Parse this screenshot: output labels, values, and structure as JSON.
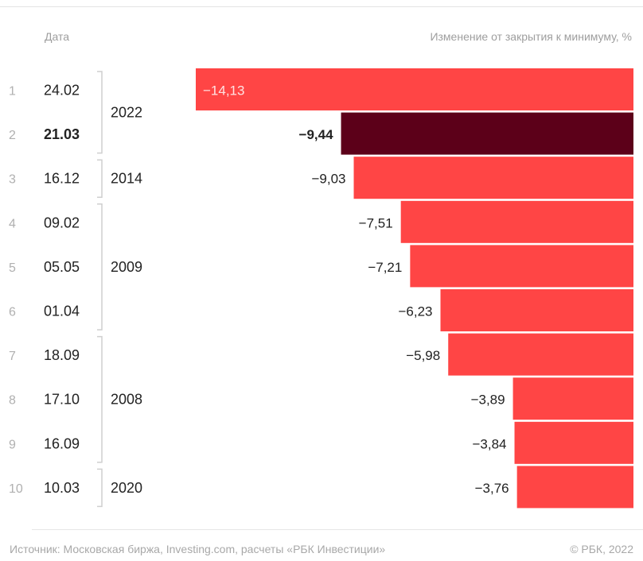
{
  "header": {
    "date_label": "Дата",
    "metric_label": "Изменение от закрытия к минимуму, %"
  },
  "footer": {
    "source": "Источник: Московская биржа, Investing.com, расчеты «РБК Инвестиции»",
    "copyright": "© РБК, 2022"
  },
  "colors": {
    "bar": "#ff4545",
    "highlight": "#5c0019",
    "rank": "#b0b0b0",
    "text": "#222222",
    "bracket": "#cfcfcf"
  },
  "chart_data": {
    "type": "bar",
    "orientation": "horizontal",
    "rows": [
      {
        "rank": "1",
        "date": "24.02",
        "value": -14.13,
        "label": "−14,13",
        "highlight": false
      },
      {
        "rank": "2",
        "date": "21.03",
        "value": -9.44,
        "label": "−9,44",
        "highlight": true
      },
      {
        "rank": "3",
        "date": "16.12",
        "value": -9.03,
        "label": "−9,03",
        "highlight": false
      },
      {
        "rank": "4",
        "date": "09.02",
        "value": -7.51,
        "label": "−7,51",
        "highlight": false
      },
      {
        "rank": "5",
        "date": "05.05",
        "value": -7.21,
        "label": "−7,21",
        "highlight": false
      },
      {
        "rank": "6",
        "date": "01.04",
        "value": -6.23,
        "label": "−6,23",
        "highlight": false
      },
      {
        "rank": "7",
        "date": "18.09",
        "value": -5.98,
        "label": "−5,98",
        "highlight": false
      },
      {
        "rank": "8",
        "date": "17.10",
        "value": -3.89,
        "label": "−3,89",
        "highlight": false
      },
      {
        "rank": "9",
        "date": "16.09",
        "value": -3.84,
        "label": "−3,84",
        "highlight": false
      },
      {
        "rank": "10",
        "date": "10.03",
        "value": -3.76,
        "label": "−3,76",
        "highlight": false
      }
    ],
    "year_groups": [
      {
        "year": "2022",
        "from": 1,
        "to": 2
      },
      {
        "year": "2014",
        "from": 3,
        "to": 3
      },
      {
        "year": "2009",
        "from": 4,
        "to": 6
      },
      {
        "year": "2008",
        "from": 7,
        "to": 9
      },
      {
        "year": "2020",
        "from": 10,
        "to": 10
      }
    ],
    "xlim": [
      -14.13,
      0
    ],
    "grid": false,
    "legend": "none"
  }
}
